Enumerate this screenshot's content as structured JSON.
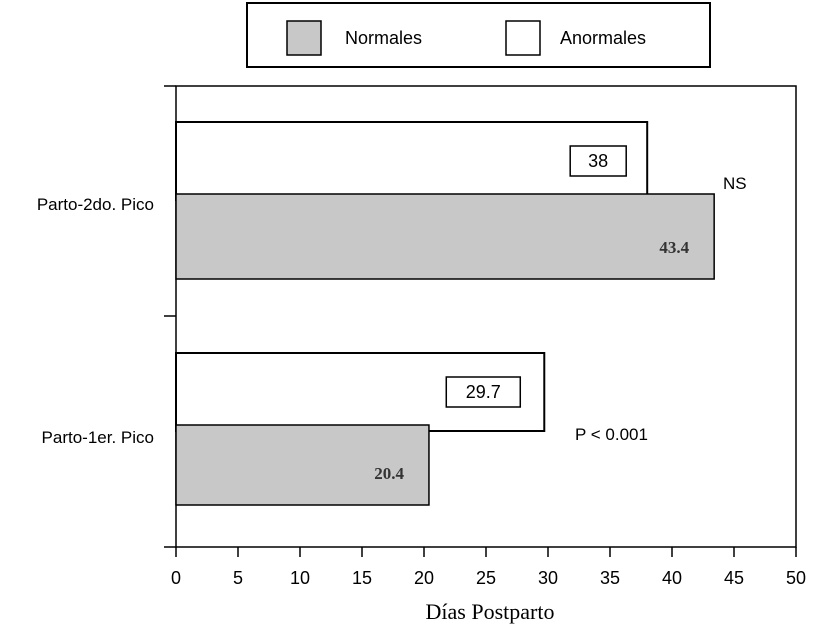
{
  "chart_data": {
    "type": "bar",
    "orientation": "horizontal",
    "categories": [
      "Parto-2do. Pico",
      "Parto-1er. Pico"
    ],
    "series": [
      {
        "name": "Anormales",
        "values": [
          38,
          29.7
        ],
        "labels": [
          "38",
          "29.7"
        ],
        "color": "#ffffff"
      },
      {
        "name": "Normales",
        "values": [
          43.4,
          20.4
        ],
        "labels": [
          "43.4",
          "20.4"
        ],
        "color": "#c8c8c8"
      }
    ],
    "annotations": [
      "NS",
      "P < 0.001"
    ],
    "xlabel": "Días Postparto",
    "xlim": [
      0,
      50
    ],
    "xticks": [
      "0",
      "5",
      "10",
      "15",
      "20",
      "25",
      "30",
      "35",
      "40",
      "45",
      "50"
    ],
    "legend_position": "top",
    "grid": false
  }
}
